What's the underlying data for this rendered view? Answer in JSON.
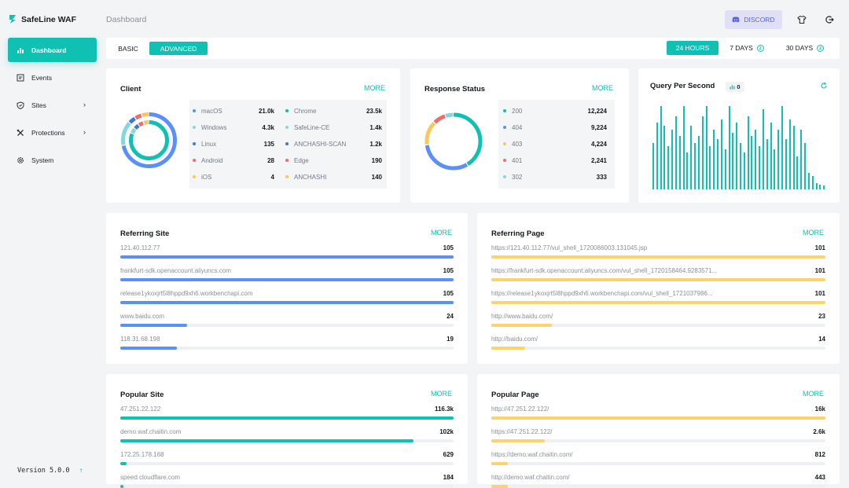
{
  "app": {
    "name": "SafeLine WAF",
    "version": "Version 5.0.0"
  },
  "header": {
    "title": "Dashboard",
    "discord_label": "DISCORD"
  },
  "sidebar": {
    "items": [
      {
        "label": "Dashboard",
        "icon": "dashboard-icon",
        "active": true
      },
      {
        "label": "Events",
        "icon": "events-icon"
      },
      {
        "label": "Sites",
        "icon": "shield-icon",
        "has_submenu": true
      },
      {
        "label": "Protections",
        "icon": "tools-icon",
        "has_submenu": true
      },
      {
        "label": "System",
        "icon": "gear-icon"
      }
    ]
  },
  "tabs": {
    "basic": "BASIC",
    "advanced": "ADVANCED"
  },
  "ranges": {
    "h24": "24 HOURS",
    "d7": "7 DAYS",
    "d30": "30 DAYS"
  },
  "more_label": "MORE",
  "client": {
    "title": "Client",
    "left": [
      {
        "name": "macOS",
        "value": "21.0k",
        "color": "#5b8ff9"
      },
      {
        "name": "Windows",
        "value": "4.3k",
        "color": "#86d6e0"
      },
      {
        "name": "Linux",
        "value": "135",
        "color": "#3e7bd6"
      },
      {
        "name": "Android",
        "value": "28",
        "color": "#f26b6b"
      },
      {
        "name": "iOS",
        "value": "4",
        "color": "#f9c85a"
      }
    ],
    "right": [
      {
        "name": "Chrome",
        "value": "23.5k",
        "color": "#10c0b2"
      },
      {
        "name": "SafeLine-CE",
        "value": "1.4k",
        "color": "#86d6e0"
      },
      {
        "name": "ANCHASHI-SCAN",
        "value": "1.2k",
        "color": "#3e7bd6"
      },
      {
        "name": "Edge",
        "value": "190",
        "color": "#f26b6b"
      },
      {
        "name": "ANCHASHI",
        "value": "140",
        "color": "#f9c85a"
      }
    ]
  },
  "response": {
    "title": "Response Status",
    "rows": [
      {
        "name": "200",
        "value": "12,224",
        "color": "#10c0b2"
      },
      {
        "name": "404",
        "value": "9,224",
        "color": "#5b8ff9"
      },
      {
        "name": "403",
        "value": "4,224",
        "color": "#f9c85a"
      },
      {
        "name": "401",
        "value": "2,241",
        "color": "#f26b6b"
      },
      {
        "name": "302",
        "value": "333",
        "color": "#86d6e0"
      }
    ]
  },
  "qps": {
    "title": "Query Per Second",
    "current": "0",
    "bars": [
      0.56,
      0.8,
      1.0,
      0.76,
      0.52,
      0.72,
      0.88,
      0.64,
      1.0,
      0.44,
      0.76,
      0.56,
      0.64,
      0.88,
      1.0,
      0.52,
      0.72,
      0.6,
      0.84,
      0.48,
      1.0,
      0.68,
      0.8,
      0.56,
      0.44,
      0.88,
      0.64,
      0.72,
      0.52,
      0.96,
      0.6,
      0.8,
      0.48,
      0.72,
      1.0,
      0.6,
      0.84,
      0.76,
      0.4,
      0.72,
      0.56,
      0.2,
      0.16,
      0.08,
      0.06,
      0.05
    ]
  },
  "referring_site": {
    "title": "Referring Site",
    "rows": [
      {
        "label": "121.40.112.77",
        "value": "105",
        "pct": 1.0
      },
      {
        "label": "frankfurt-sdk.openaccount.aliyuncs.com",
        "value": "105",
        "pct": 1.0
      },
      {
        "label": "release1ykoxjrt5l8hppd9xh6.workbenchapi.com",
        "value": "105",
        "pct": 1.0
      },
      {
        "label": "www.baidu.com",
        "value": "24",
        "pct": 0.2
      },
      {
        "label": "118.31.68.198",
        "value": "19",
        "pct": 0.17
      }
    ],
    "color": "#5b8ff9"
  },
  "referring_page": {
    "title": "Referring Page",
    "rows": [
      {
        "label": "https://121.40.112.77/vul_shell_1720086003.131045.jsp",
        "value": "101",
        "pct": 1.0
      },
      {
        "label": "https://frankfurt-sdk.openaccount.aliyuncs.com/vul_shell_1720158464.9283571...",
        "value": "101",
        "pct": 1.0
      },
      {
        "label": "https://release1ykoxjrt5l8hppd9xh6.workbenchapi.com/vul_shell_1721037986...",
        "value": "101",
        "pct": 1.0
      },
      {
        "label": "http://www.baidu.com/",
        "value": "23",
        "pct": 0.18
      },
      {
        "label": "http://baidu.com/",
        "value": "14",
        "pct": 0.1
      }
    ],
    "color": "#fbd46e"
  },
  "popular_site": {
    "title": "Popular Site",
    "rows": [
      {
        "label": "47.251.22.122",
        "value": "116.3k",
        "pct": 1.0
      },
      {
        "label": "demo.waf.chaitin.com",
        "value": "102k",
        "pct": 0.88
      },
      {
        "label": "172.25.178.168",
        "value": "629",
        "pct": 0.02
      },
      {
        "label": "speed.cloudflare.com",
        "value": "184",
        "pct": 0.01
      }
    ],
    "color": "#10c0b2"
  },
  "popular_page": {
    "title": "Popular Page",
    "rows": [
      {
        "label": "http://47.251.22.122/",
        "value": "16k",
        "pct": 1.0
      },
      {
        "label": "https://47.251.22.122/",
        "value": "2.6k",
        "pct": 0.16
      },
      {
        "label": "https://demo.waf.chaitin.com/",
        "value": "812",
        "pct": 0.05
      },
      {
        "label": "http://demo.waf.chaitin.com/",
        "value": "443",
        "pct": 0.05
      }
    ],
    "color": "#fbd46e"
  }
}
